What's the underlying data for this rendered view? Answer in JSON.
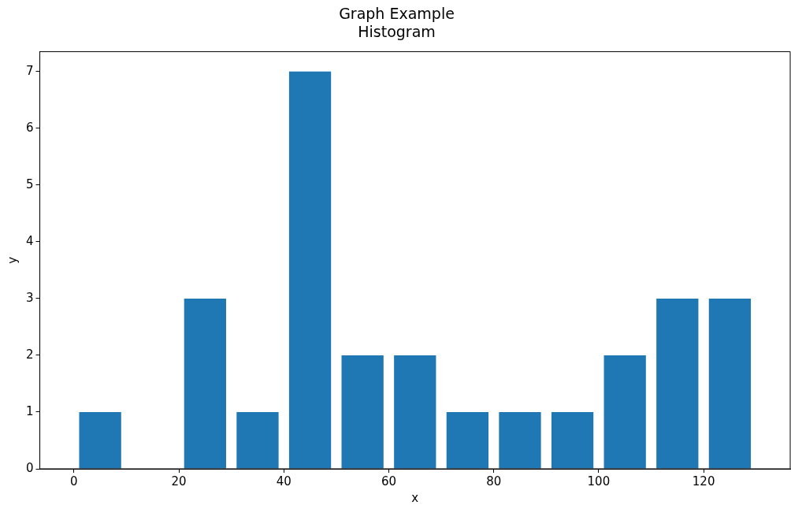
{
  "chart_data": {
    "type": "histogram",
    "title": "Graph Example",
    "subtitle": "Histogram",
    "xlabel": "x",
    "ylabel": "y",
    "bins": [
      0,
      10,
      20,
      30,
      40,
      50,
      60,
      70,
      80,
      90,
      100,
      110,
      120,
      130
    ],
    "values": [
      1,
      0,
      3,
      1,
      7,
      2,
      2,
      1,
      1,
      1,
      2,
      3,
      3
    ],
    "color": "#1f77b4",
    "xlim": [
      -6.5,
      136.5
    ],
    "ylim": [
      0,
      7.35
    ],
    "xticks": [
      0,
      20,
      40,
      60,
      80,
      100,
      120
    ],
    "yticks": [
      0,
      1,
      2,
      3,
      4,
      5,
      6,
      7
    ],
    "grid": false,
    "legend": false
  }
}
